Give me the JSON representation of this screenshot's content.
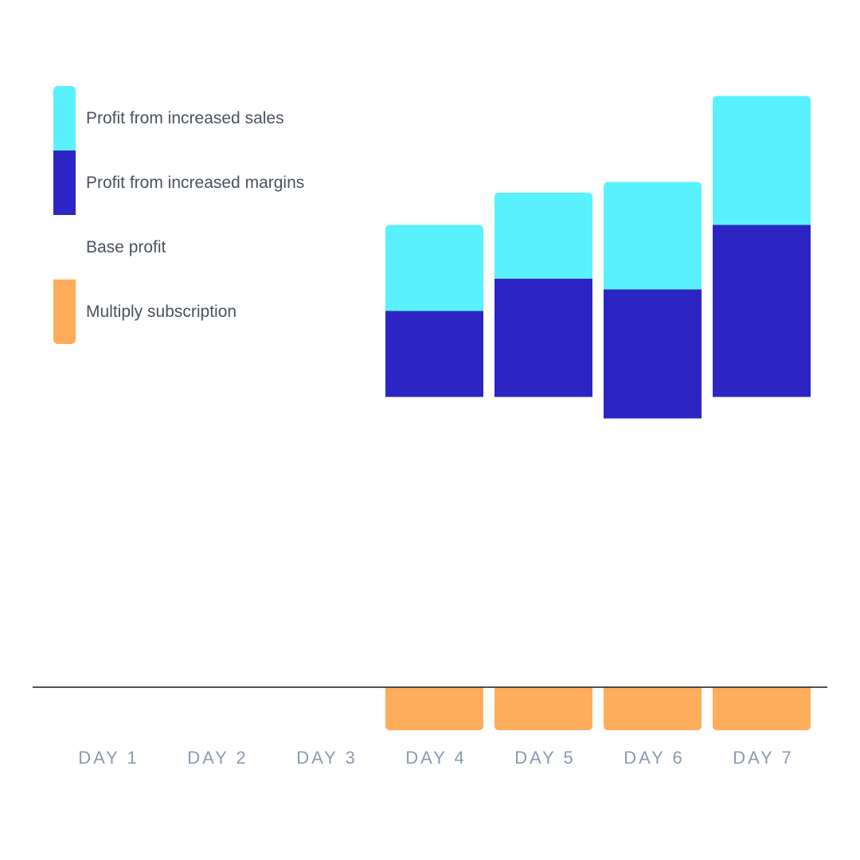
{
  "chart_data": {
    "type": "bar",
    "stacked": true,
    "categories": [
      "DAY 1",
      "DAY 2",
      "DAY 3",
      "DAY 4",
      "DAY 5",
      "DAY 6",
      "DAY 7"
    ],
    "series": [
      {
        "name": "Base profit",
        "color": "#ffffff",
        "values": [
          0,
          0,
          0,
          5.4,
          5.4,
          5.0,
          5.4
        ]
      },
      {
        "name": "Profit from increased margins",
        "color": "#2d25c3",
        "values": [
          0,
          0,
          0,
          1.6,
          2.2,
          2.4,
          3.2
        ]
      },
      {
        "name": "Profit from increased sales",
        "color": "#5af1ff",
        "values": [
          0,
          0,
          0,
          1.6,
          1.6,
          2.0,
          2.4
        ]
      },
      {
        "name": "Multiply subscription",
        "color": "#ffac5c",
        "values": [
          0,
          0,
          0,
          -0.8,
          -0.8,
          -0.8,
          -0.8
        ]
      }
    ],
    "ylim": [
      -1.5,
      11
    ],
    "title": "",
    "xlabel": "",
    "ylabel": "",
    "grid": false,
    "legend_position": "top-left"
  },
  "legend": [
    {
      "label": "Profit from increased sales",
      "color": "#5af1ff"
    },
    {
      "label": "Profit from increased margins",
      "color": "#2d25c3"
    },
    {
      "label": "Base profit",
      "color": "#ffffff"
    },
    {
      "label": "Multiply subscription",
      "color": "#ffac5c"
    }
  ]
}
